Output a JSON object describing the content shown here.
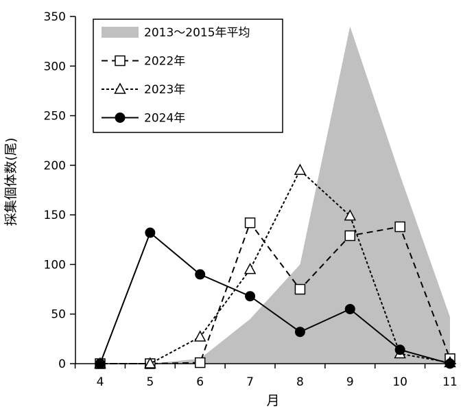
{
  "chart_data": {
    "type": "line",
    "xlabel": "月",
    "ylabel": "採集個体数(尾)",
    "x": [
      4,
      5,
      6,
      7,
      8,
      9,
      10,
      11
    ],
    "xlim": [
      4,
      11
    ],
    "ylim": [
      0,
      350
    ],
    "yticks": [
      0,
      50,
      100,
      150,
      200,
      250,
      300,
      350
    ],
    "grid": false,
    "legend_position": "top-left",
    "series": [
      {
        "name": "2013～2015年平均",
        "style": "area",
        "color": "#c0c0c0",
        "values": [
          0,
          0,
          5,
          45,
          100,
          340,
          190,
          47
        ]
      },
      {
        "name": "2022年",
        "style": "dashed",
        "marker": "open-square",
        "color": "#000000",
        "values": [
          0,
          0,
          1,
          142,
          75,
          129,
          138,
          5
        ]
      },
      {
        "name": "2023年",
        "style": "dotted",
        "marker": "open-triangle",
        "color": "#000000",
        "values": [
          0,
          0,
          27,
          95,
          195,
          149,
          10,
          1
        ]
      },
      {
        "name": "2024年",
        "style": "solid",
        "marker": "filled-circle",
        "color": "#000000",
        "values": [
          0,
          132,
          90,
          68,
          32,
          55,
          14,
          0
        ]
      }
    ]
  }
}
